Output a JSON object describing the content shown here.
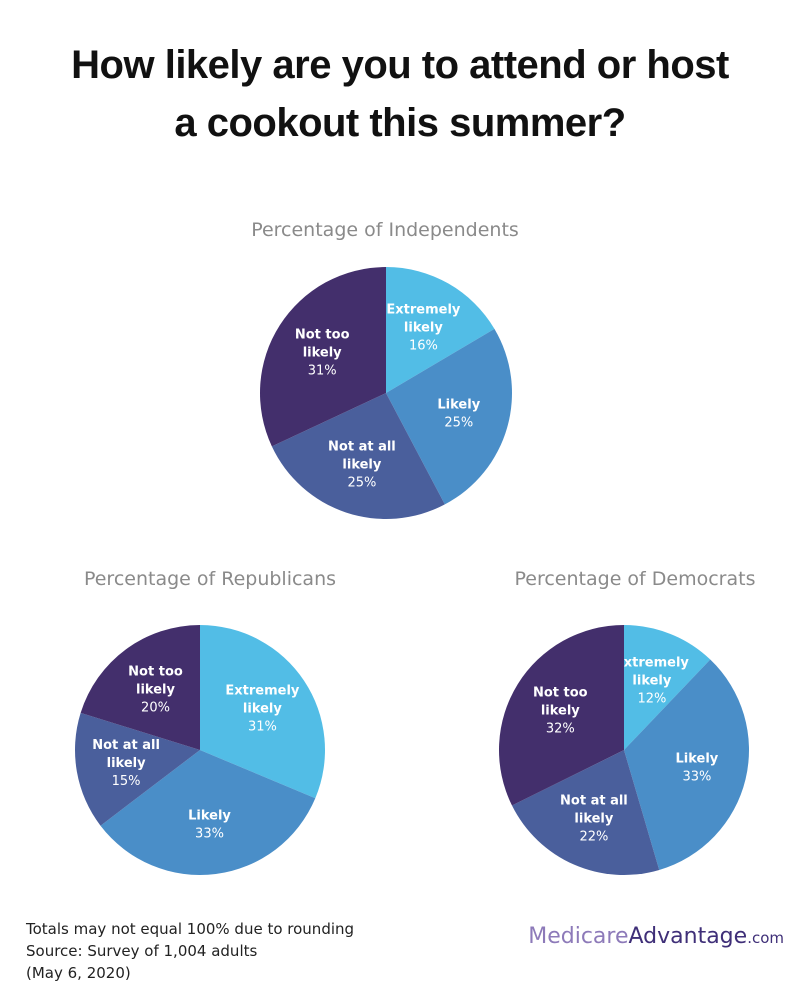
{
  "headline": {
    "line1": "How likely are you to attend or host",
    "line2": "a cookout this summer?"
  },
  "colors": {
    "extremely_likely": "#52bde6",
    "likely": "#4a8ec8",
    "not_at_all_likely": "#4a5f9c",
    "not_too_likely": "#432f6c"
  },
  "chart_data": [
    {
      "type": "pie",
      "title": "Percentage of Independents",
      "slices": [
        {
          "name": "Extremely likely",
          "value": 16,
          "label": "16%"
        },
        {
          "name": "Likely",
          "value": 25,
          "label": "25%"
        },
        {
          "name": "Not at all likely",
          "value": 25,
          "label": "25%"
        },
        {
          "name": "Not too likely",
          "value": 31,
          "label": "31%"
        }
      ]
    },
    {
      "type": "pie",
      "title": "Percentage of Republicans",
      "slices": [
        {
          "name": "Extremely likely",
          "value": 31,
          "label": "31%"
        },
        {
          "name": "Likely",
          "value": 33,
          "label": "33%"
        },
        {
          "name": "Not at all likely",
          "value": 15,
          "label": "15%"
        },
        {
          "name": "Not too likely",
          "value": 20,
          "label": "20%"
        }
      ]
    },
    {
      "type": "pie",
      "title": "Percentage of Democrats",
      "slices": [
        {
          "name": "Extremely likely",
          "value": 12,
          "label": "12%"
        },
        {
          "name": "Likely",
          "value": 33,
          "label": "33%"
        },
        {
          "name": "Not at all likely",
          "value": 22,
          "label": "22%"
        },
        {
          "name": "Not too likely",
          "value": 32,
          "label": "32%"
        }
      ]
    }
  ],
  "footnote": {
    "line1": "Totals may not equal 100% due to rounding",
    "line2": "Source: Survey of 1,004 adults",
    "line3": "(May 6, 2020)"
  },
  "brand": {
    "part1": "Medicare",
    "part2": "Advantage",
    "part3": ".com"
  }
}
